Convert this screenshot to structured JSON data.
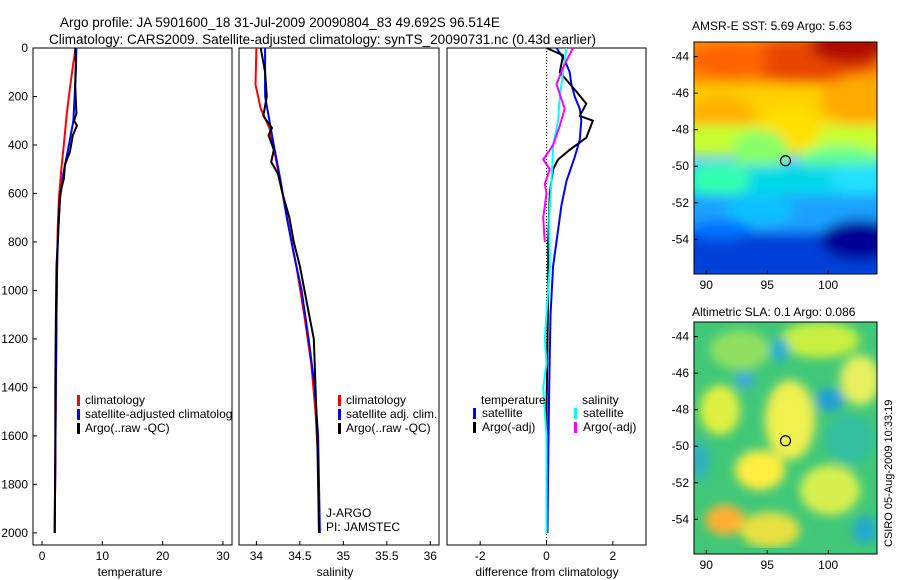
{
  "header": {
    "line1": "Argo profile: JA 5901600_18 31-Jul-2009 20090804_83 49.692S 96.514E",
    "line2": "Climatology: CARS2009. Satellite-adjusted climatology: synTS_20090731.nc (0.43d earlier)"
  },
  "credit": "CSIRO 05-Aug-2009 10:33:19",
  "colors": {
    "clim": "#ff0000",
    "sat": "#0000ff",
    "argo": "#000000",
    "sat_s": "#00ffff",
    "argo_s": "#ff00ff"
  },
  "chart_data": [
    {
      "id": "temperature",
      "type": "line",
      "xlabel": "temperature",
      "xlim": [
        -1.5,
        31.5
      ],
      "ylim": [
        0,
        2050
      ],
      "xticks": [
        0,
        10,
        20,
        30
      ],
      "xtick_labels": [
        "0",
        "10",
        "20",
        "30"
      ],
      "yticks": [
        0,
        200,
        400,
        600,
        800,
        1000,
        1200,
        1400,
        1600,
        1800,
        2000
      ],
      "ytick_labels": [
        "0",
        "200",
        "400",
        "600",
        "800",
        "1000",
        "1200",
        "1400",
        "1600",
        "1800",
        "2000"
      ],
      "legend": [
        {
          "label": "climatology",
          "color": "#ff0000"
        },
        {
          "label": "satellite-adjusted climatolog",
          "color": "#0000ff"
        },
        {
          "label": "Argo(..raw -QC)",
          "color": "#000000"
        }
      ],
      "series": [
        {
          "name": "climatology",
          "color": "#ff0000",
          "points": [
            [
              5.6,
              0
            ],
            [
              5.2,
              60
            ],
            [
              4.7,
              150
            ],
            [
              4.1,
              270
            ],
            [
              3.6,
              400
            ],
            [
              3.2,
              500
            ],
            [
              2.8,
              620
            ],
            [
              2.6,
              750
            ],
            [
              2.5,
              900
            ],
            [
              2.4,
              1100
            ],
            [
              2.3,
              1400
            ],
            [
              2.2,
              1700
            ],
            [
              2.1,
              2000
            ]
          ]
        },
        {
          "name": "satellite-adjusted climatology",
          "color": "#0000ff",
          "points": [
            [
              5.7,
              0
            ],
            [
              5.6,
              100
            ],
            [
              5.4,
              200
            ],
            [
              5.2,
              300
            ],
            [
              4.3,
              420
            ],
            [
              3.5,
              520
            ],
            [
              3.0,
              620
            ],
            [
              2.7,
              750
            ],
            [
              2.5,
              900
            ],
            [
              2.4,
              1100
            ],
            [
              2.3,
              1400
            ],
            [
              2.2,
              1700
            ],
            [
              2.1,
              2000
            ]
          ]
        },
        {
          "name": "Argo",
          "color": "#000000",
          "points": [
            [
              5.5,
              0
            ],
            [
              5.6,
              60
            ],
            [
              5.5,
              150
            ],
            [
              5.7,
              270
            ],
            [
              5.3,
              300
            ],
            [
              5.8,
              320
            ],
            [
              5.1,
              360
            ],
            [
              4.6,
              430
            ],
            [
              3.8,
              480
            ],
            [
              3.6,
              540
            ],
            [
              3.0,
              600
            ],
            [
              2.8,
              700
            ],
            [
              2.6,
              800
            ],
            [
              2.4,
              900
            ],
            [
              2.3,
              1100
            ],
            [
              2.2,
              1400
            ],
            [
              2.2,
              1700
            ],
            [
              2.1,
              2000
            ]
          ]
        }
      ]
    },
    {
      "id": "salinity",
      "type": "line",
      "xlabel": "salinity",
      "xlim": [
        33.8,
        36.1
      ],
      "ylim": [
        0,
        2050
      ],
      "xticks": [
        34,
        34.5,
        35,
        35.5,
        36
      ],
      "xtick_labels": [
        "34",
        "34.5",
        "35",
        "35.5",
        "36"
      ],
      "legend": [
        {
          "label": "climatology",
          "color": "#ff0000"
        },
        {
          "label": "satellite adj. clim.",
          "color": "#0000ff"
        },
        {
          "label": "Argo(..raw -QC)",
          "color": "#000000"
        }
      ],
      "annotations": [
        "J-ARGO",
        "PI: JAMSTEC"
      ],
      "series": [
        {
          "name": "climatology",
          "color": "#ff0000",
          "points": [
            [
              34.0,
              0
            ],
            [
              33.99,
              150
            ],
            [
              34.05,
              250
            ],
            [
              34.15,
              330
            ],
            [
              34.22,
              450
            ],
            [
              34.3,
              600
            ],
            [
              34.38,
              750
            ],
            [
              34.46,
              900
            ],
            [
              34.55,
              1100
            ],
            [
              34.63,
              1300
            ],
            [
              34.68,
              1500
            ],
            [
              34.71,
              1700
            ],
            [
              34.72,
              2000
            ]
          ]
        },
        {
          "name": "satellite adj. clim.",
          "color": "#0000ff",
          "points": [
            [
              34.1,
              0
            ],
            [
              34.1,
              200
            ],
            [
              34.2,
              400
            ],
            [
              34.28,
              550
            ],
            [
              34.35,
              700
            ],
            [
              34.43,
              850
            ],
            [
              34.52,
              1000
            ],
            [
              34.6,
              1200
            ],
            [
              34.67,
              1400
            ],
            [
              34.71,
              1600
            ],
            [
              34.72,
              1800
            ],
            [
              34.73,
              2000
            ]
          ]
        },
        {
          "name": "Argo",
          "color": "#000000",
          "points": [
            [
              34.05,
              0
            ],
            [
              34.1,
              100
            ],
            [
              34.12,
              200
            ],
            [
              34.08,
              280
            ],
            [
              34.18,
              330
            ],
            [
              34.14,
              360
            ],
            [
              34.2,
              420
            ],
            [
              34.17,
              470
            ],
            [
              34.25,
              520
            ],
            [
              34.3,
              600
            ],
            [
              34.38,
              700
            ],
            [
              34.43,
              800
            ],
            [
              34.5,
              900
            ],
            [
              34.58,
              1050
            ],
            [
              34.66,
              1200
            ],
            [
              34.67,
              1300
            ],
            [
              34.68,
              1400
            ],
            [
              34.7,
              1600
            ],
            [
              34.72,
              2000
            ]
          ]
        }
      ]
    },
    {
      "id": "difference",
      "type": "line",
      "xlabel": "difference from climatology",
      "xlim": [
        -3.0,
        3.0
      ],
      "ylim": [
        0,
        2050
      ],
      "xticks": [
        -2,
        0,
        2
      ],
      "xtick_labels": [
        "-2",
        "0",
        "2"
      ],
      "legend_titles": [
        "temperature",
        "salinity"
      ],
      "legend": [
        {
          "label": "satellite",
          "color": "#0000ff",
          "group": "temperature"
        },
        {
          "label": "Argo(-adj)",
          "color": "#000000",
          "group": "temperature"
        },
        {
          "label": "satellite",
          "color": "#00ffff",
          "group": "salinity"
        },
        {
          "label": "Argo(-adj)",
          "color": "#ff00ff",
          "group": "salinity"
        }
      ],
      "series": [
        {
          "name": "temperature satellite",
          "color": "#0000ff",
          "points": [
            [
              0.3,
              0
            ],
            [
              0.55,
              50
            ],
            [
              0.7,
              100
            ],
            [
              0.75,
              150
            ],
            [
              0.85,
              200
            ],
            [
              1.0,
              250
            ],
            [
              1.05,
              300
            ],
            [
              1.0,
              380
            ],
            [
              0.85,
              450
            ],
            [
              0.6,
              550
            ],
            [
              0.45,
              650
            ],
            [
              0.35,
              750
            ],
            [
              0.2,
              900
            ],
            [
              0.12,
              1100
            ],
            [
              0.08,
              1400
            ],
            [
              0.05,
              1700
            ],
            [
              0.03,
              2000
            ]
          ]
        },
        {
          "name": "temperature Argo(-adj)",
          "color": "#000000",
          "points": [
            [
              0.0,
              0
            ],
            [
              0.5,
              30
            ],
            [
              0.4,
              100
            ],
            [
              0.9,
              180
            ],
            [
              1.2,
              230
            ],
            [
              1.0,
              280
            ],
            [
              1.4,
              300
            ],
            [
              1.2,
              370
            ],
            [
              0.7,
              420
            ],
            [
              0.35,
              460
            ],
            [
              0.2,
              500
            ],
            [
              0.1,
              600
            ],
            [
              0.05,
              800
            ],
            [
              0.05,
              1000
            ],
            [
              0.0,
              1500
            ],
            [
              0.0,
              2000
            ]
          ]
        },
        {
          "name": "salinity satellite",
          "color": "#00ffff",
          "points": [
            [
              0.6,
              0
            ],
            [
              0.5,
              100
            ],
            [
              0.4,
              200
            ],
            [
              0.35,
              300
            ],
            [
              0.2,
              400
            ],
            [
              0.15,
              550
            ],
            [
              0.08,
              700
            ],
            [
              0.1,
              900
            ],
            [
              0.0,
              1100
            ],
            [
              -0.05,
              1200
            ],
            [
              0.0,
              1300
            ],
            [
              -0.1,
              1400
            ],
            [
              0.0,
              1600
            ],
            [
              0.0,
              2000
            ]
          ]
        },
        {
          "name": "salinity Argo(-adj)",
          "color": "#ff00ff",
          "points": [
            [
              0.8,
              0
            ],
            [
              0.5,
              80
            ],
            [
              0.3,
              150
            ],
            [
              0.55,
              250
            ],
            [
              0.4,
              320
            ],
            [
              0.2,
              400
            ],
            [
              -0.1,
              460
            ],
            [
              0.1,
              500
            ],
            [
              -0.05,
              560
            ],
            [
              0.0,
              600
            ],
            [
              -0.1,
              700
            ],
            [
              -0.05,
              800
            ]
          ]
        }
      ]
    }
  ],
  "maps": [
    {
      "id": "sst",
      "title": "AMSR-E SST: 5.69 Argo: 5.63",
      "xticks": [
        90,
        95,
        100
      ],
      "xtick_labels": [
        "90",
        "95",
        "100"
      ],
      "yticks": [
        -44,
        -46,
        -48,
        -50,
        -52,
        -54
      ],
      "ytick_labels": [
        "-44",
        "-46",
        "-48",
        "-50",
        "-52",
        "-54"
      ],
      "xlim": [
        89,
        104
      ],
      "ylim": [
        -55.9,
        -43.2
      ],
      "marker": {
        "lon": 96.5,
        "lat": -49.7
      }
    },
    {
      "id": "sla",
      "title": "Altimetric SLA: 0.1 Argo: 0.086",
      "xticks": [
        90,
        95,
        100
      ],
      "xtick_labels": [
        "90",
        "95",
        "100"
      ],
      "yticks": [
        -44,
        -46,
        -48,
        -50,
        -52,
        -54
      ],
      "ytick_labels": [
        "-44",
        "-46",
        "-48",
        "-50",
        "-52",
        "-54"
      ],
      "xlim": [
        89,
        104
      ],
      "ylim": [
        -55.9,
        -43.2
      ],
      "marker": {
        "lon": 96.5,
        "lat": -49.7
      }
    }
  ]
}
